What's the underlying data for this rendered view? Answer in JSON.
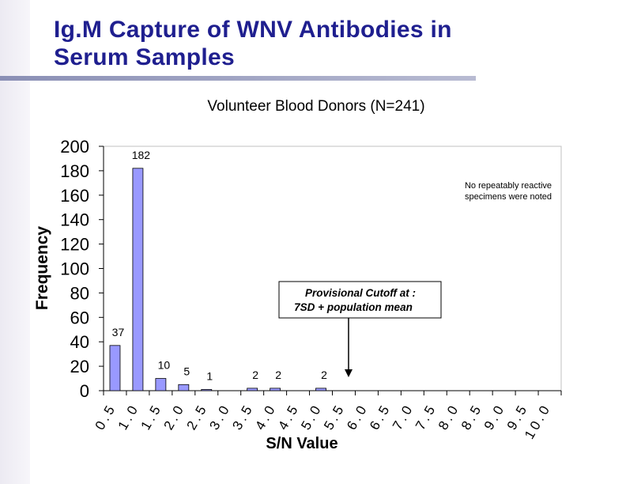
{
  "slide": {
    "title_line1": "Ig.M Capture of WNV Antibodies in",
    "title_line2": "Serum Samples",
    "title_color": "#1f1f8f"
  },
  "chart_data": {
    "type": "bar",
    "title": "Volunteer Blood Donors  (N=241)",
    "xlabel": "S/N Value",
    "ylabel": "Frequency",
    "ylim": [
      0,
      200
    ],
    "yticks": [
      0,
      20,
      40,
      60,
      80,
      100,
      120,
      140,
      160,
      180,
      200
    ],
    "categories": [
      "0.5",
      "1.0",
      "1.5",
      "2.0",
      "2.5",
      "3.0",
      "3.5",
      "4.0",
      "4.5",
      "5.0",
      "5.5",
      "6.0",
      "6.5",
      "7.0",
      "7.5",
      "8.0",
      "8.5",
      "9.0",
      "9.5",
      "10.0"
    ],
    "values": [
      37,
      182,
      10,
      5,
      1,
      0,
      2,
      2,
      0,
      2,
      0,
      0,
      0,
      0,
      0,
      0,
      0,
      0,
      0,
      0
    ],
    "data_labels": [
      "37",
      "182",
      "10",
      "5",
      "1",
      "",
      "2",
      "2",
      "",
      "2",
      "",
      "",
      "",
      "",
      "",
      "",
      "",
      "",
      "",
      ""
    ],
    "bar_color": "#9999ff",
    "annotations": {
      "note_line1": "No repeatably reactive",
      "note_line2": "specimens were noted",
      "cutoff_line1": "Provisional Cutoff at :",
      "cutoff_line2": "7SD + population mean",
      "cutoff_arrow_at": 5.5
    },
    "grid": false
  }
}
